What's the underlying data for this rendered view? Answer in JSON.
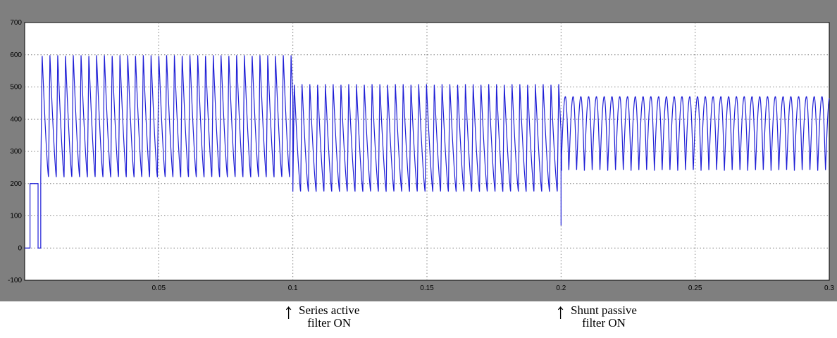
{
  "chart_data": {
    "type": "line",
    "title": "",
    "xlabel": "",
    "ylabel": "",
    "xlim": [
      0,
      0.3
    ],
    "ylim": [
      -100,
      700
    ],
    "grid": true,
    "x_ticks": [
      0.05,
      0.1,
      0.15,
      0.2,
      0.25,
      0.3
    ],
    "x_tick_labels": [
      "0.05",
      "0.1",
      "0.15",
      "0.2",
      "0.25",
      "0.3"
    ],
    "y_ticks": [
      -100,
      0,
      100,
      200,
      300,
      400,
      500,
      600,
      700
    ],
    "y_tick_labels": [
      "-100",
      "0",
      "100",
      "200",
      "300",
      "400",
      "500",
      "600",
      "700"
    ],
    "colors": {
      "frame": "#7f7f7f",
      "plot_bg": "#ffffff",
      "signal": "#1f1fd6",
      "grid": "#808080"
    },
    "series": [
      {
        "segments": [
          {
            "x_start": 0.0,
            "x_end": 0.002,
            "value": 0
          },
          {
            "x_start": 0.002,
            "x_end": 0.005,
            "value": 200
          },
          {
            "x_start": 0.005,
            "x_end": 0.006,
            "value": 0
          },
          {
            "x_start": 0.006,
            "x_end": 0.1,
            "min": 220,
            "max": 600,
            "period": 0.0029,
            "waveform": "sawtooth"
          },
          {
            "x_start": 0.1,
            "x_end": 0.2,
            "min": 175,
            "max": 510,
            "period": 0.0029,
            "waveform": "sawtooth"
          },
          {
            "x_start": 0.2,
            "x_end": 0.3,
            "min": 240,
            "max": 470,
            "period": 0.0029,
            "waveform": "rounded"
          }
        ],
        "events": [
          {
            "x": 0.2,
            "value": 70
          }
        ]
      }
    ],
    "annotations": [
      {
        "x": 0.1,
        "line1": "Series active",
        "line2": "filter ON"
      },
      {
        "x": 0.2,
        "line1": "Shunt passive",
        "line2": "filter ON"
      }
    ]
  }
}
